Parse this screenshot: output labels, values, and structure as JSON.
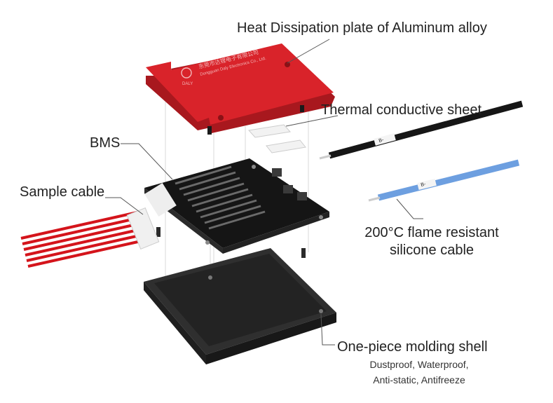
{
  "labels": {
    "heat_plate": "Heat Dissipation plate of Aluminum alloy",
    "thermal_sheet": "Thermal conductive sheet",
    "bms": "BMS",
    "sample_cable": "Sample cable",
    "silicone_cable_line1": "200°C flame resistant",
    "silicone_cable_line2": "silicone cable",
    "shell_title": "One-piece molding shell",
    "shell_features_line1": "Dustproof, Waterproof,",
    "shell_features_line2": "Anti-static, Antifreeze"
  },
  "plate_print": {
    "logo": "DALY",
    "company_cn": "东莞市达锂电子有限公司",
    "company_en": "Dongguan Daly Electronics Co., Ltd."
  },
  "cable_marks": {
    "black": "B-",
    "blue": "B-"
  },
  "colors": {
    "plate": "#d9232a",
    "plate_edge": "#b31b21",
    "pcb": "#1d1d1d",
    "shell": "#2a2a2a",
    "sample_wire": "#d4141b",
    "blue_cable": "#6d9fe0",
    "black_cable": "#161616",
    "leader": "#555555"
  }
}
